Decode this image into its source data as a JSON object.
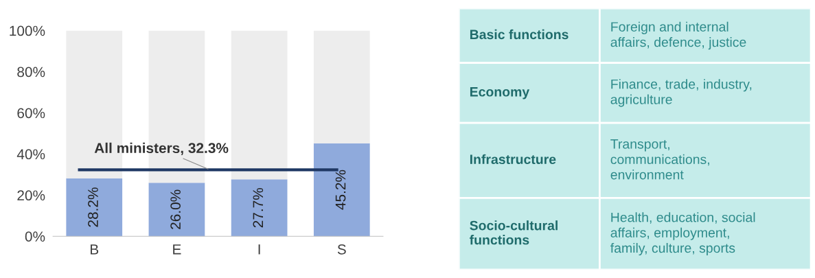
{
  "chart_data": [
    {
      "type": "bar",
      "stacked": true,
      "categories": [
        "B",
        "E",
        "I",
        "S"
      ],
      "series": [
        {
          "color": "#8faadc",
          "values": [
            28.2,
            26.0,
            27.7,
            45.2
          ],
          "value_labels": [
            "28.2%",
            "26.0%",
            "27.7%",
            "45.2%"
          ]
        },
        {
          "color": "#ededed",
          "values": [
            71.8,
            74.0,
            72.3,
            54.8
          ]
        }
      ],
      "ylim": [
        0,
        100
      ],
      "yticks": [
        {
          "value": 0,
          "label": "0%"
        },
        {
          "value": 20,
          "label": "20%"
        },
        {
          "value": 40,
          "label": "40%"
        },
        {
          "value": 60,
          "label": "60%"
        },
        {
          "value": 80,
          "label": "80%"
        },
        {
          "value": 100,
          "label": "100%"
        }
      ],
      "ref_lines": [
        {
          "axis": "y",
          "value": 32.3,
          "label": "All ministers, 32.3%",
          "color": "#1f3864"
        }
      ],
      "grid": false,
      "legend": false
    },
    {
      "type": "other",
      "categories": [
        "Basic functions",
        "Economy",
        "Infrastructure",
        "Socio-cultural\nfunctions"
      ],
      "annotations": [
        "Foreign and internal\naffairs, defence, justice",
        "Finance, trade, industry,\nagriculture",
        "Transport,\ncommunications,\nenvironment",
        "Health, education, social\naffairs, employment,\nfamily, culture, sports"
      ]
    }
  ]
}
